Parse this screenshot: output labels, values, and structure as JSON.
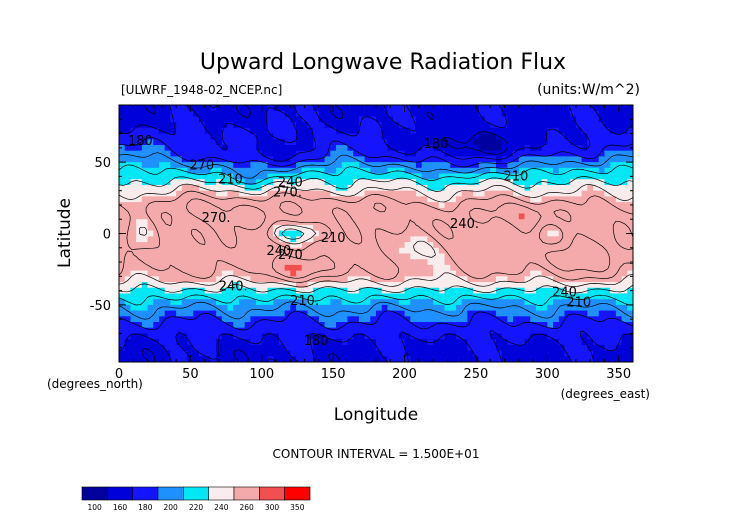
{
  "chart_data": {
    "type": "heatmap",
    "title": "Upward Longwave Radiation Flux",
    "subtitle_left": "[ULWRF_1948-02_NCEP.nc]",
    "subtitle_right": "(units:W/m^2)",
    "xlabel": "Longitude",
    "ylabel": "Latitude",
    "x_unit_note": "(degrees_east)",
    "y_unit_note": "(degrees_north)",
    "xlim": [
      0,
      360
    ],
    "ylim": [
      -90,
      90
    ],
    "x_ticks": [
      0,
      50,
      100,
      150,
      200,
      250,
      300,
      350
    ],
    "y_ticks": [
      -50,
      0,
      50
    ],
    "contour_interval_text": "CONTOUR INTERVAL = 1.500E+01",
    "contour_labels": [
      {
        "text": "180",
        "lon": 15,
        "lat": 62
      },
      {
        "text": "270",
        "lon": 58,
        "lat": 45
      },
      {
        "text": "210",
        "lon": 78,
        "lat": 35
      },
      {
        "text": "240",
        "lon": 120,
        "lat": 33
      },
      {
        "text": "270.",
        "lon": 118,
        "lat": 26
      },
      {
        "text": "270.",
        "lon": 68,
        "lat": 8
      },
      {
        "text": "240",
        "lon": 112,
        "lat": -15
      },
      {
        "text": "270",
        "lon": 120,
        "lat": -18
      },
      {
        "text": "210",
        "lon": 150,
        "lat": -6
      },
      {
        "text": "240.",
        "lon": 242,
        "lat": 4
      },
      {
        "text": "240.",
        "lon": 80,
        "lat": -40
      },
      {
        "text": "210.",
        "lon": 130,
        "lat": -50
      },
      {
        "text": "180",
        "lon": 138,
        "lat": -78
      },
      {
        "text": "240",
        "lon": 312,
        "lat": -44
      },
      {
        "text": "210",
        "lon": 322,
        "lat": -51
      },
      {
        "text": "210",
        "lon": 278,
        "lat": 37
      },
      {
        "text": "180",
        "lon": 222,
        "lat": 60
      }
    ],
    "colorbar": {
      "levels": [
        "100",
        "160",
        "180",
        "200",
        "220",
        "240",
        "260",
        "300",
        "350"
      ],
      "colors": [
        "#00009c",
        "#0000d8",
        "#1414ff",
        "#1e90ff",
        "#00e8f4",
        "#f8ecec",
        "#f4aaaa",
        "#f25050",
        "#ff0000"
      ]
    }
  }
}
